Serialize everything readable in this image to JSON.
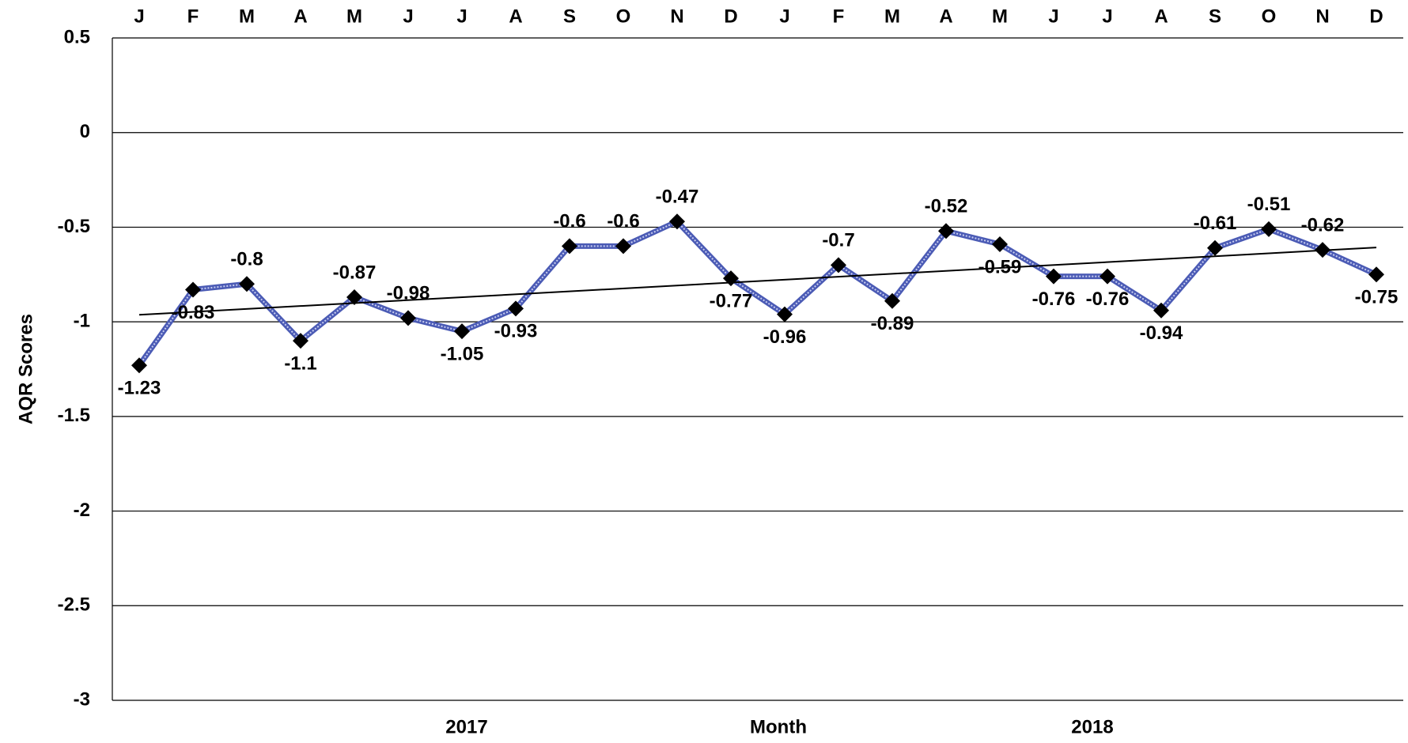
{
  "chart_data": {
    "type": "line",
    "categories": [
      "J",
      "F",
      "M",
      "A",
      "M",
      "J",
      "J",
      "A",
      "S",
      "O",
      "N",
      "D",
      "J",
      "F",
      "M",
      "A",
      "M",
      "J",
      "J",
      "A",
      "S",
      "O",
      "N",
      "D"
    ],
    "x_group_labels": [
      "2017",
      "2018"
    ],
    "x_label": "Month",
    "y_label": "AQR Scores",
    "series": [
      {
        "color": "#4b5bb5",
        "marker_color": "#000000",
        "values": [
          -1.23,
          -0.83,
          -0.8,
          -1.1,
          -0.87,
          -0.98,
          -1.05,
          -0.93,
          -0.6,
          -0.6,
          -0.47,
          -0.77,
          -0.96,
          -0.7,
          -0.89,
          -0.52,
          -0.59,
          -0.76,
          -0.76,
          -0.94,
          -0.61,
          -0.51,
          -0.62,
          -0.75
        ]
      }
    ],
    "ylim": [
      -3,
      0.5
    ],
    "yticks": [
      0.5,
      0,
      -0.5,
      -1,
      -1.5,
      -2,
      -2.5,
      -3
    ],
    "grid": true,
    "trendline": true
  }
}
